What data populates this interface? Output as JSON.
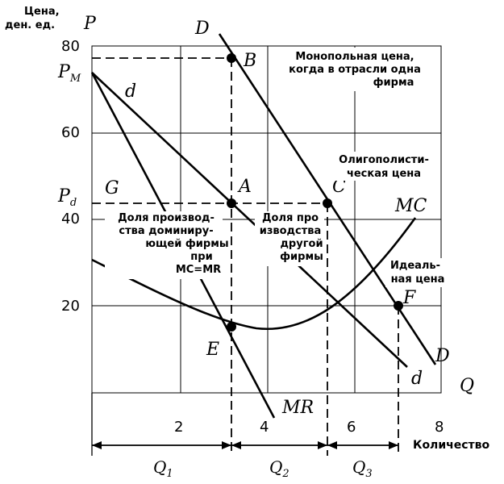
{
  "axes": {
    "y_title_line1": "Цена,",
    "y_title_line2": "ден. ед.",
    "y_symbol": "P",
    "x_symbol": "Q",
    "x_title": "Количество",
    "y_ticks": [
      "80",
      "60",
      "40",
      "20"
    ],
    "x_ticks": [
      "2",
      "4",
      "6",
      "8"
    ]
  },
  "price_labels": {
    "pm": "P",
    "pm_sub": "M",
    "pd": "P",
    "pd_sub": "d"
  },
  "curve_labels": {
    "D_top": "D",
    "D_bottom": "D",
    "d_top": "d",
    "d_bottom": "d",
    "MC": "MC",
    "MR": "MR"
  },
  "points": {
    "B": "B",
    "A": "A",
    "C": "C",
    "G": "G",
    "E": "E",
    "F": "F"
  },
  "annotations": {
    "monopoly": [
      "Монопольная цена,",
      "когда в отрасли одна",
      "фирма"
    ],
    "oligopoly": [
      "Олигополисти-",
      "ческая цена"
    ],
    "dominant_share": [
      "Доля производ-",
      "ства доминиру-",
      "ющей фирмы",
      "при",
      "MC=MR"
    ],
    "other_share": [
      "Доля про",
      "изводства",
      "другой",
      "фирмы"
    ],
    "ideal": [
      "Идеаль-",
      "ная цена"
    ]
  },
  "quantities": {
    "q1": "Q",
    "q1_sub": "1",
    "q2": "Q",
    "q2_sub": "2",
    "q3": "Q",
    "q3_sub": "3"
  }
}
